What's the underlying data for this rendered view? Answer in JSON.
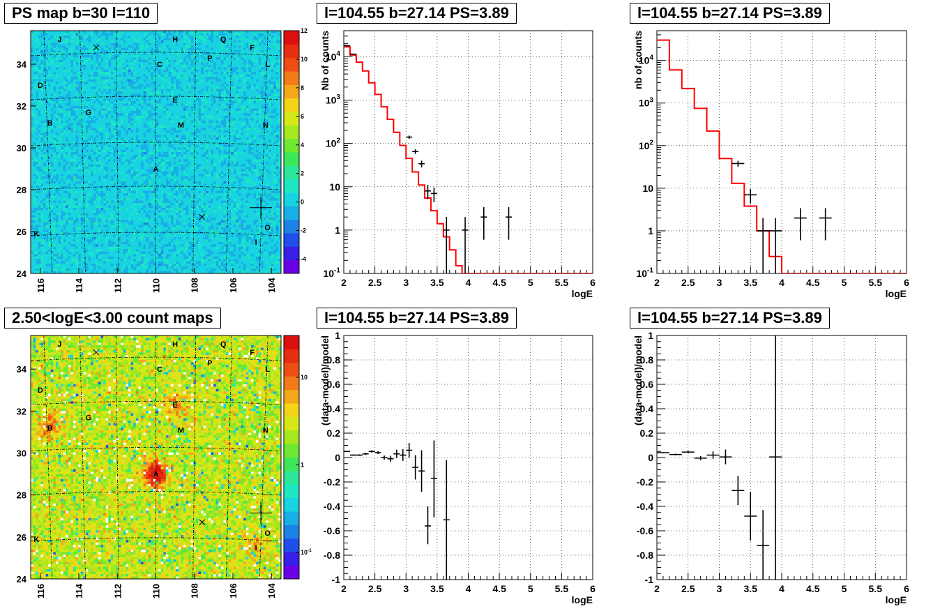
{
  "panels": [
    {
      "id": "ps_map",
      "title": "PS map b=30 l=110",
      "chart_data": {
        "type": "heatmap",
        "x_ticks": [
          "116",
          "114",
          "112",
          "110",
          "108",
          "106",
          "104"
        ],
        "y_ticks": [
          "24",
          "26",
          "28",
          "30",
          "32",
          "34"
        ],
        "xlim": [
          103.5,
          116.5
        ],
        "ylim": [
          24,
          35.6
        ],
        "colorbar": {
          "scale": "linear",
          "range": [
            -5,
            12
          ],
          "ticks": [
            "12",
            "10",
            "8",
            "6",
            "4",
            "2",
            "0",
            "-2",
            "-4"
          ]
        },
        "source_labels": [
          {
            "text": "J",
            "l": 115.0,
            "b": 35.2
          },
          {
            "text": "H",
            "l": 109.0,
            "b": 35.2
          },
          {
            "text": "Q",
            "l": 106.5,
            "b": 35.2
          },
          {
            "text": "F",
            "l": 105.0,
            "b": 34.8
          },
          {
            "text": "C",
            "l": 109.8,
            "b": 34.0
          },
          {
            "text": "P",
            "l": 107.2,
            "b": 34.3
          },
          {
            "text": "L",
            "l": 104.2,
            "b": 34.0
          },
          {
            "text": "D",
            "l": 116.0,
            "b": 33.0
          },
          {
            "text": "E",
            "l": 109.0,
            "b": 32.3
          },
          {
            "text": "G",
            "l": 113.5,
            "b": 31.7
          },
          {
            "text": "B",
            "l": 115.5,
            "b": 31.2
          },
          {
            "text": "M",
            "l": 108.7,
            "b": 31.1
          },
          {
            "text": "N",
            "l": 104.3,
            "b": 31.1
          },
          {
            "text": "A",
            "l": 110.0,
            "b": 29.0
          },
          {
            "text": "O",
            "l": 104.2,
            "b": 26.2
          },
          {
            "text": "K",
            "l": 116.2,
            "b": 25.9
          },
          {
            "text": "I",
            "l": 104.8,
            "b": 25.5
          }
        ],
        "markers": [
          {
            "type": "x",
            "l": 113.1,
            "b": 34.8
          },
          {
            "type": "x",
            "l": 107.6,
            "b": 26.7
          },
          {
            "type": "cross",
            "l": 104.55,
            "b": 27.14
          }
        ]
      }
    },
    {
      "id": "spectrum_1",
      "title": "l=104.55 b=27.14 PS=3.89",
      "chart_data": {
        "type": "line",
        "xlabel": "logE",
        "ylabel": "Nb of counts",
        "xlim": [
          2,
          6
        ],
        "ylim": [
          0.1,
          40000
        ],
        "yscale": "log",
        "x_ticks": [
          "2",
          "2.5",
          "3",
          "3.5",
          "4",
          "4.5",
          "5",
          "5.5",
          "6"
        ],
        "y_ticks": [
          "10^{-1}",
          "1",
          "10",
          "10^{2}",
          "10^{3}",
          "10^{4}"
        ],
        "grid": true,
        "model_bin_width": 0.1,
        "model_x_start": 2.0,
        "model_values": [
          17000,
          11000,
          7500,
          4700,
          2500,
          1350,
          700,
          360,
          180,
          90,
          45,
          22,
          11,
          5.5,
          2.8,
          1.4,
          0.7,
          0.35,
          0.15,
          0.1,
          0.1,
          0.1,
          0.1,
          0.1,
          0.1,
          0.1,
          0.1,
          0.1,
          0.1,
          0.1,
          0.1,
          0.1,
          0.1,
          0.1,
          0.1,
          0.1,
          0.1,
          0.1,
          0.1,
          0.1
        ],
        "data_points": [
          {
            "x": 2.05,
            "y": 18000,
            "xerr": 0.05,
            "ylo": 17800,
            "yhi": 18200
          },
          {
            "x": 2.15,
            "y": 11500,
            "xerr": 0.05,
            "ylo": 11300,
            "yhi": 11700
          },
          {
            "x": 3.05,
            "y": 140,
            "xerr": 0.05,
            "ylo": 128,
            "yhi": 152
          },
          {
            "x": 3.15,
            "y": 65,
            "xerr": 0.05,
            "ylo": 57,
            "yhi": 73
          },
          {
            "x": 3.25,
            "y": 34,
            "xerr": 0.05,
            "ylo": 28,
            "yhi": 40
          },
          {
            "x": 3.35,
            "y": 8,
            "xerr": 0.05,
            "ylo": 5.2,
            "yhi": 11
          },
          {
            "x": 3.45,
            "y": 7,
            "xerr": 0.05,
            "ylo": 4.4,
            "yhi": 9.6
          },
          {
            "x": 3.65,
            "y": 1,
            "xerr": 0.05,
            "ylo": 0.1,
            "yhi": 2
          },
          {
            "x": 3.95,
            "y": 1,
            "xerr": 0.05,
            "ylo": 0.1,
            "yhi": 2
          },
          {
            "x": 4.25,
            "y": 2,
            "xerr": 0.05,
            "ylo": 0.6,
            "yhi": 3.4
          },
          {
            "x": 4.65,
            "y": 2,
            "xerr": 0.05,
            "ylo": 0.6,
            "yhi": 3.4
          }
        ]
      }
    },
    {
      "id": "spectrum_2",
      "title": "l=104.55 b=27.14 PS=3.89",
      "chart_data": {
        "type": "line",
        "xlabel": "logE",
        "ylabel": "nb of counts",
        "xlim": [
          2,
          6
        ],
        "ylim": [
          0.1,
          50000
        ],
        "yscale": "log",
        "x_ticks": [
          "2",
          "2.5",
          "3",
          "3.5",
          "4",
          "4.5",
          "5",
          "5.5",
          "6"
        ],
        "y_ticks": [
          "10^{-1}",
          "1",
          "10",
          "10^{2}",
          "10^{3}",
          "10^{4}"
        ],
        "grid": true,
        "model_bin_width": 0.2,
        "model_x_start": 2.0,
        "model_values": [
          30000,
          6000,
          2200,
          750,
          220,
          50,
          13,
          3.8,
          1,
          0.25,
          0.1,
          0.1,
          0.1,
          0.1,
          0.1,
          0.1,
          0.1,
          0.1,
          0.1,
          0.1
        ],
        "data_points": [
          {
            "x": 3.3,
            "y": 38,
            "xerr": 0.1,
            "ylo": 32,
            "yhi": 44
          },
          {
            "x": 3.5,
            "y": 7,
            "xerr": 0.1,
            "ylo": 4.4,
            "yhi": 9.6
          },
          {
            "x": 3.7,
            "y": 1,
            "xerr": 0.1,
            "ylo": 0.1,
            "yhi": 2
          },
          {
            "x": 3.9,
            "y": 1,
            "xerr": 0.1,
            "ylo": 0.1,
            "yhi": 2
          },
          {
            "x": 4.3,
            "y": 2,
            "xerr": 0.1,
            "ylo": 0.6,
            "yhi": 3.4
          },
          {
            "x": 4.7,
            "y": 2,
            "xerr": 0.1,
            "ylo": 0.6,
            "yhi": 3.4
          }
        ]
      }
    },
    {
      "id": "count_map",
      "title": "2.50<logE<3.00 count maps",
      "chart_data": {
        "type": "heatmap",
        "x_ticks": [
          "116",
          "114",
          "112",
          "110",
          "108",
          "106",
          "104"
        ],
        "y_ticks": [
          "24",
          "26",
          "28",
          "30",
          "32",
          "34"
        ],
        "xlim": [
          103.5,
          116.5
        ],
        "ylim": [
          24,
          35.6
        ],
        "colorbar": {
          "scale": "log",
          "range": [
            0.05,
            30
          ],
          "ticks": [
            "10",
            "1",
            "10^{-1}"
          ]
        },
        "hotspots": [
          {
            "l": 110.0,
            "b": 29.0,
            "strength": 1.0
          },
          {
            "l": 115.5,
            "b": 31.3,
            "strength": 0.45
          },
          {
            "l": 109.0,
            "b": 32.3,
            "strength": 0.35
          },
          {
            "l": 104.8,
            "b": 25.5,
            "strength": 0.3
          }
        ],
        "source_labels": [
          {
            "text": "J",
            "l": 115.0,
            "b": 35.2
          },
          {
            "text": "H",
            "l": 109.0,
            "b": 35.2
          },
          {
            "text": "Q",
            "l": 106.5,
            "b": 35.2
          },
          {
            "text": "F",
            "l": 105.0,
            "b": 34.8
          },
          {
            "text": "C",
            "l": 109.8,
            "b": 34.0
          },
          {
            "text": "P",
            "l": 107.2,
            "b": 34.3
          },
          {
            "text": "L",
            "l": 104.2,
            "b": 34.0
          },
          {
            "text": "D",
            "l": 116.0,
            "b": 33.0
          },
          {
            "text": "E",
            "l": 109.0,
            "b": 32.3
          },
          {
            "text": "G",
            "l": 113.5,
            "b": 31.7
          },
          {
            "text": "B",
            "l": 115.5,
            "b": 31.2
          },
          {
            "text": "M",
            "l": 108.7,
            "b": 31.1
          },
          {
            "text": "N",
            "l": 104.3,
            "b": 31.1
          },
          {
            "text": "A",
            "l": 110.0,
            "b": 29.0
          },
          {
            "text": "O",
            "l": 104.2,
            "b": 26.2
          },
          {
            "text": "K",
            "l": 116.2,
            "b": 25.9
          },
          {
            "text": "I",
            "l": 104.8,
            "b": 25.5
          }
        ],
        "markers": [
          {
            "type": "x",
            "l": 113.1,
            "b": 34.8
          },
          {
            "type": "x",
            "l": 107.6,
            "b": 26.7
          },
          {
            "type": "cross",
            "l": 104.55,
            "b": 27.14
          }
        ]
      }
    },
    {
      "id": "residual_1",
      "title": "l=104.55 b=27.14 PS=3.89",
      "chart_data": {
        "type": "scatter",
        "xlabel": "logE",
        "ylabel": "(data-model)/model",
        "xlim": [
          2,
          6
        ],
        "ylim": [
          -1,
          1
        ],
        "x_ticks": [
          "2",
          "2.5",
          "3",
          "3.5",
          "4",
          "4.5",
          "5",
          "5.5",
          "6"
        ],
        "y_ticks": [
          "-1",
          "-0.8",
          "-0.6",
          "-0.4",
          "-0.2",
          "0",
          "0.2",
          "0.4",
          "0.6",
          "0.8",
          "1"
        ],
        "grid": true,
        "data_points": [
          {
            "x": 2.05,
            "y": 0.05,
            "xerr": 0.05,
            "ylo": 0.045,
            "yhi": 0.055
          },
          {
            "x": 2.15,
            "y": 0.02,
            "xerr": 0.05,
            "ylo": 0.015,
            "yhi": 0.025
          },
          {
            "x": 2.25,
            "y": 0.02,
            "xerr": 0.05,
            "ylo": 0.014,
            "yhi": 0.026
          },
          {
            "x": 2.35,
            "y": 0.03,
            "xerr": 0.05,
            "ylo": 0.022,
            "yhi": 0.038
          },
          {
            "x": 2.45,
            "y": 0.05,
            "xerr": 0.05,
            "ylo": 0.04,
            "yhi": 0.06
          },
          {
            "x": 2.55,
            "y": 0.04,
            "xerr": 0.05,
            "ylo": 0.028,
            "yhi": 0.052
          },
          {
            "x": 2.65,
            "y": 0.0,
            "xerr": 0.05,
            "ylo": -0.017,
            "yhi": 0.017
          },
          {
            "x": 2.75,
            "y": -0.01,
            "xerr": 0.05,
            "ylo": -0.034,
            "yhi": 0.014
          },
          {
            "x": 2.85,
            "y": 0.03,
            "xerr": 0.05,
            "ylo": -0.004,
            "yhi": 0.064
          },
          {
            "x": 2.95,
            "y": 0.02,
            "xerr": 0.05,
            "ylo": -0.028,
            "yhi": 0.068
          },
          {
            "x": 3.05,
            "y": 0.06,
            "xerr": 0.05,
            "ylo": 0.0,
            "yhi": 0.12
          },
          {
            "x": 3.15,
            "y": -0.08,
            "xerr": 0.05,
            "ylo": -0.18,
            "yhi": 0.02
          },
          {
            "x": 3.25,
            "y": -0.11,
            "xerr": 0.05,
            "ylo": -0.28,
            "yhi": 0.06
          },
          {
            "x": 3.35,
            "y": -0.56,
            "xerr": 0.05,
            "ylo": -0.71,
            "yhi": -0.4
          },
          {
            "x": 3.45,
            "y": -0.17,
            "xerr": 0.05,
            "ylo": -0.49,
            "yhi": 0.14
          },
          {
            "x": 3.65,
            "y": -0.51,
            "xerr": 0.05,
            "ylo": -1.0,
            "yhi": -0.02
          }
        ]
      }
    },
    {
      "id": "residual_2",
      "title": "l=104.55 b=27.14 PS=3.89",
      "chart_data": {
        "type": "scatter",
        "xlabel": "logE",
        "ylabel": "(data-model)/model",
        "xlim": [
          2,
          6
        ],
        "ylim": [
          -1,
          1
        ],
        "x_ticks": [
          "2",
          "2.5",
          "3",
          "3.5",
          "4",
          "4.5",
          "5",
          "5.5",
          "6"
        ],
        "y_ticks": [
          "-1",
          "-0.8",
          "-0.6",
          "-0.4",
          "-0.2",
          "0",
          "0.2",
          "0.4",
          "0.6",
          "0.8",
          "1"
        ],
        "grid": true,
        "data_points": [
          {
            "x": 2.1,
            "y": 0.04,
            "xerr": 0.1,
            "ylo": 0.036,
            "yhi": 0.044
          },
          {
            "x": 2.3,
            "y": 0.025,
            "xerr": 0.1,
            "ylo": 0.018,
            "yhi": 0.032
          },
          {
            "x": 2.5,
            "y": 0.045,
            "xerr": 0.1,
            "ylo": 0.033,
            "yhi": 0.057
          },
          {
            "x": 2.7,
            "y": -0.005,
            "xerr": 0.1,
            "ylo": -0.022,
            "yhi": 0.012
          },
          {
            "x": 2.9,
            "y": 0.02,
            "xerr": 0.1,
            "ylo": -0.01,
            "yhi": 0.05
          },
          {
            "x": 3.1,
            "y": 0.005,
            "xerr": 0.1,
            "ylo": -0.055,
            "yhi": 0.065
          },
          {
            "x": 3.3,
            "y": -0.27,
            "xerr": 0.1,
            "ylo": -0.39,
            "yhi": -0.15
          },
          {
            "x": 3.5,
            "y": -0.48,
            "xerr": 0.1,
            "ylo": -0.68,
            "yhi": -0.28
          },
          {
            "x": 3.7,
            "y": -0.72,
            "xerr": 0.1,
            "ylo": -1.0,
            "yhi": -0.43
          },
          {
            "x": 3.9,
            "y": 0.005,
            "xerr": 0.1,
            "ylo": -1.0,
            "yhi": 1.0
          }
        ]
      }
    }
  ]
}
